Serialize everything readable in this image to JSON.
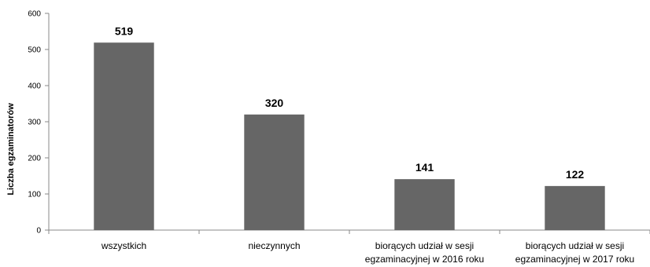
{
  "chart_data": {
    "type": "bar",
    "title": "",
    "xlabel": "",
    "ylabel": "Liczba egzaminatorów",
    "ylim": [
      0,
      600
    ],
    "yticks": [
      0,
      100,
      200,
      300,
      400,
      500,
      600
    ],
    "grid": false,
    "legend": "none",
    "bar_color": "#666666",
    "categories": [
      [
        "wszystkich"
      ],
      [
        "nieczynnych"
      ],
      [
        "biorących udział w sesji",
        "egzaminacyjnej w 2016 roku"
      ],
      [
        "biorących udział w sesji",
        "egzaminacyjnej w 2017 roku"
      ]
    ],
    "values": [
      519,
      320,
      141,
      122
    ]
  }
}
